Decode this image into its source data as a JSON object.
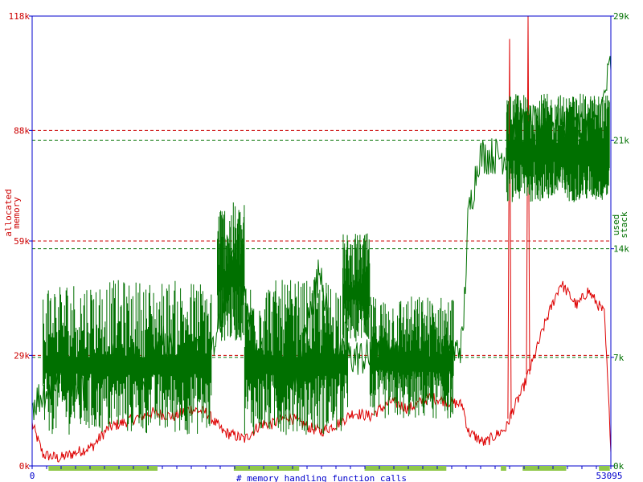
{
  "chart_data": {
    "type": "line",
    "xlabel": "# memory handling function calls",
    "x_range": [
      0,
      53095
    ],
    "x_ticks": [
      "0",
      "53095"
    ],
    "y_left": {
      "label": [
        "allocated",
        "memory"
      ],
      "unit": "k",
      "range": [
        0,
        118
      ],
      "ticks": [
        "0k",
        "29k",
        "59k",
        "88k",
        "118k"
      ],
      "color": "#cc0000"
    },
    "y_right": {
      "label": [
        "used",
        "stack"
      ],
      "unit": "k",
      "range": [
        0,
        29
      ],
      "ticks": [
        "0k",
        "7k",
        "14k",
        "21k",
        "29k"
      ],
      "color": "#007000"
    },
    "reference_lines_left": [
      29,
      59,
      88
    ],
    "reference_lines_right": [
      7,
      14,
      21
    ],
    "series": [
      {
        "axis": "left",
        "color": "#dd0000",
        "x": [
          0,
          1000,
          2500,
          4500,
          5500,
          7000,
          9000,
          11000,
          13000,
          14500,
          16000,
          17500,
          19500,
          21000,
          22000,
          23500,
          25500,
          26500,
          28000,
          29500,
          31000,
          33000,
          34500,
          36500,
          38000,
          39500,
          40000,
          41500,
          42500,
          43500,
          44000,
          45000,
          46000,
          47000,
          48500,
          50000,
          51000,
          52500,
          53095
        ],
        "y": [
          11,
          3,
          2,
          4,
          5,
          10,
          12,
          14,
          13,
          15,
          14,
          9,
          7,
          11,
          11,
          13,
          10,
          9,
          11,
          14,
          13,
          17,
          15,
          18,
          17,
          16,
          9,
          6,
          8,
          10,
          14,
          20,
          28,
          37,
          48,
          42,
          46,
          40,
          5
        ],
        "spikes": [
          {
            "x": 43800,
            "y": 112
          },
          {
            "x": 45500,
            "y": 118
          }
        ]
      },
      {
        "axis": "right",
        "color": "#007000",
        "x": [
          0,
          1500,
          3000,
          4500,
          6000,
          7500,
          9000,
          10500,
          12000,
          13500,
          15000,
          16500,
          17500,
          18500,
          19000,
          20500,
          22000,
          23500,
          24500,
          25500,
          26500,
          27500,
          29000,
          30500,
          32000,
          33500,
          35000,
          36500,
          37500,
          38500,
          39500,
          40000,
          41000,
          42500,
          43500,
          44500,
          46000,
          47500,
          49000,
          50500,
          52000,
          53095
        ],
        "y": [
          4,
          5,
          6,
          5,
          6,
          7,
          7,
          6,
          8,
          7,
          7,
          7,
          10,
          14,
          13,
          7,
          7,
          6,
          6,
          10,
          13,
          7,
          7,
          7,
          7,
          7,
          7,
          7,
          7,
          7,
          8,
          16,
          20,
          20,
          20,
          22,
          22,
          22,
          22,
          22,
          22,
          26
        ],
        "bursts": [
          {
            "x0": 1000,
            "x1": 16500,
            "lo": 2,
            "hi": 12,
            "n": 220
          },
          {
            "x0": 17000,
            "x1": 19500,
            "lo": 8,
            "hi": 17,
            "n": 60
          },
          {
            "x0": 19500,
            "x1": 29000,
            "lo": 2,
            "hi": 12,
            "n": 160
          },
          {
            "x0": 28500,
            "x1": 31000,
            "lo": 8,
            "hi": 15,
            "n": 60
          },
          {
            "x0": 31000,
            "x1": 38700,
            "lo": 3,
            "hi": 11,
            "n": 150
          },
          {
            "x0": 43500,
            "x1": 53000,
            "lo": 17,
            "hi": 24,
            "n": 260
          }
        ]
      }
    ],
    "activity_bar_segments": [
      [
        1500,
        11500
      ],
      [
        18500,
        24500
      ],
      [
        30500,
        38000
      ],
      [
        43000,
        43500
      ],
      [
        45000,
        49000
      ],
      [
        52000,
        53000
      ]
    ]
  }
}
